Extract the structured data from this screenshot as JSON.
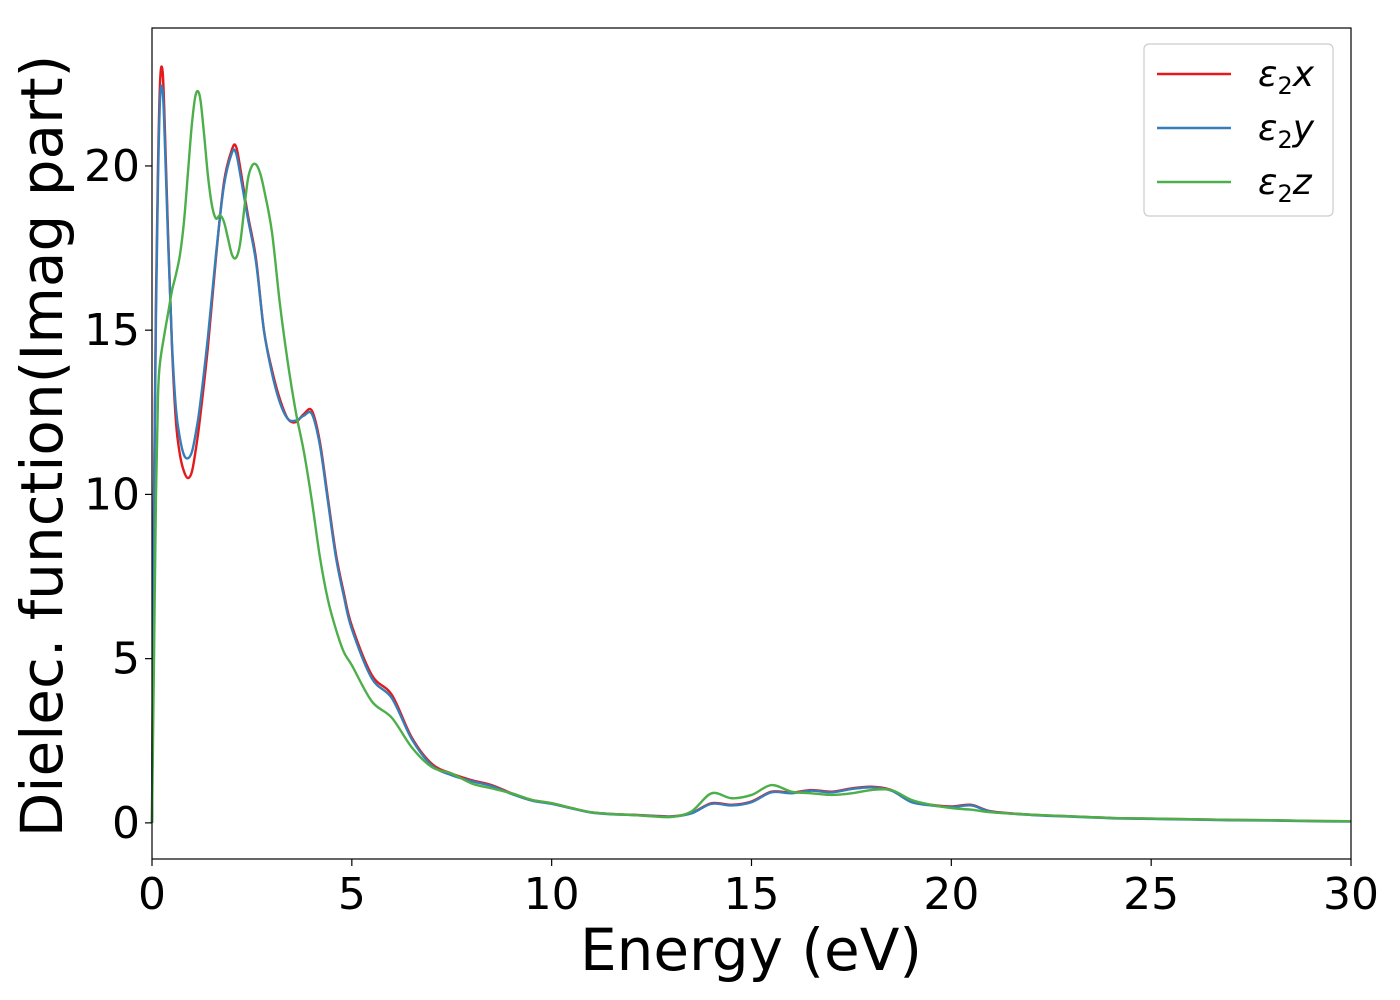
{
  "chart_data": {
    "type": "line",
    "title": "",
    "xlabel": "Energy (eV)",
    "ylabel": "Dielec. function(Imag part)",
    "xlim": [
      0,
      30
    ],
    "ylim": [
      -1.1,
      24.2
    ],
    "xticks": [
      "0",
      "5",
      "10",
      "15",
      "20",
      "25",
      "30"
    ],
    "yticks": [
      "0",
      "5",
      "10",
      "15",
      "20"
    ],
    "xtick_values": [
      0,
      5,
      10,
      15,
      20,
      25,
      30
    ],
    "ytick_values": [
      0,
      5,
      10,
      15,
      20
    ],
    "grid": false,
    "legend_position": "top-right",
    "series": [
      {
        "name": "ε₂x",
        "legend_base": "ε",
        "legend_sub": "2",
        "legend_var": "x",
        "color": "#e41a1c",
        "x": [
          0,
          0.05,
          0.1,
          0.15,
          0.2,
          0.25,
          0.3,
          0.4,
          0.5,
          0.6,
          0.7,
          0.8,
          0.9,
          1.0,
          1.1,
          1.2,
          1.4,
          1.6,
          1.8,
          2.0,
          2.1,
          2.2,
          2.4,
          2.6,
          2.8,
          3.0,
          3.2,
          3.4,
          3.6,
          3.8,
          4.0,
          4.2,
          4.4,
          4.6,
          4.8,
          5.0,
          5.5,
          6.0,
          6.5,
          7.0,
          7.5,
          8.0,
          8.5,
          9.0,
          9.5,
          10.0,
          10.5,
          11.0,
          11.5,
          12.0,
          12.5,
          13.0,
          13.5,
          14.0,
          14.5,
          15.0,
          15.5,
          16.0,
          16.5,
          17.0,
          17.5,
          18.0,
          18.5,
          19.0,
          19.5,
          20.0,
          20.5,
          21.0,
          22.0,
          23.0,
          24.0,
          25.0,
          26.0,
          27.0,
          28.0,
          29.0,
          30.0
        ],
        "y": [
          0.0,
          10.0,
          16.0,
          20.0,
          22.5,
          23.0,
          22.0,
          18.0,
          14.5,
          12.2,
          11.2,
          10.7,
          10.5,
          10.7,
          11.4,
          12.3,
          14.5,
          17.2,
          19.5,
          20.5,
          20.6,
          20.0,
          18.5,
          17.2,
          15.0,
          13.8,
          12.9,
          12.3,
          12.2,
          12.45,
          12.55,
          11.6,
          9.9,
          8.2,
          7.0,
          6.0,
          4.5,
          3.9,
          2.6,
          1.8,
          1.5,
          1.3,
          1.15,
          0.9,
          0.7,
          0.6,
          0.45,
          0.32,
          0.27,
          0.25,
          0.22,
          0.2,
          0.3,
          0.6,
          0.55,
          0.65,
          0.95,
          0.92,
          1.0,
          0.95,
          1.05,
          1.1,
          1.0,
          0.65,
          0.55,
          0.5,
          0.55,
          0.35,
          0.25,
          0.2,
          0.15,
          0.13,
          0.11,
          0.09,
          0.08,
          0.06,
          0.05
        ]
      },
      {
        "name": "ε₂y",
        "legend_base": "ε",
        "legend_sub": "2",
        "legend_var": "y",
        "color": "#377eb8",
        "x": [
          0,
          0.05,
          0.1,
          0.15,
          0.2,
          0.25,
          0.3,
          0.4,
          0.5,
          0.6,
          0.7,
          0.8,
          0.9,
          1.0,
          1.1,
          1.2,
          1.4,
          1.6,
          1.8,
          2.0,
          2.1,
          2.2,
          2.4,
          2.6,
          2.8,
          3.0,
          3.2,
          3.4,
          3.6,
          3.8,
          4.0,
          4.2,
          4.4,
          4.6,
          4.8,
          5.0,
          5.5,
          6.0,
          6.5,
          7.0,
          7.5,
          8.0,
          8.5,
          9.0,
          9.5,
          10.0,
          10.5,
          11.0,
          11.5,
          12.0,
          12.5,
          13.0,
          13.5,
          14.0,
          14.5,
          15.0,
          15.5,
          16.0,
          16.5,
          17.0,
          17.5,
          18.0,
          18.5,
          19.0,
          19.5,
          20.0,
          20.5,
          21.0,
          22.0,
          23.0,
          24.0,
          25.0,
          26.0,
          27.0,
          28.0,
          29.0,
          30.0
        ],
        "y": [
          0.0,
          9.5,
          15.5,
          19.5,
          22.0,
          22.4,
          21.5,
          17.8,
          14.6,
          12.6,
          11.7,
          11.2,
          11.1,
          11.3,
          11.9,
          12.7,
          14.8,
          17.3,
          19.4,
          20.4,
          20.4,
          19.8,
          18.4,
          17.1,
          15.0,
          13.7,
          12.8,
          12.3,
          12.25,
          12.4,
          12.45,
          11.5,
          9.8,
          8.1,
          6.9,
          5.9,
          4.4,
          3.8,
          2.55,
          1.75,
          1.45,
          1.27,
          1.12,
          0.88,
          0.68,
          0.58,
          0.44,
          0.31,
          0.26,
          0.24,
          0.21,
          0.19,
          0.29,
          0.58,
          0.53,
          0.63,
          0.93,
          0.9,
          0.98,
          0.93,
          1.03,
          1.08,
          0.98,
          0.63,
          0.53,
          0.48,
          0.53,
          0.34,
          0.24,
          0.19,
          0.14,
          0.12,
          0.1,
          0.08,
          0.07,
          0.05,
          0.04
        ]
      },
      {
        "name": "ε₂z",
        "legend_base": "ε",
        "legend_sub": "2",
        "legend_var": "z",
        "color": "#4daf4a",
        "x": [
          0,
          0.05,
          0.1,
          0.15,
          0.2,
          0.3,
          0.4,
          0.5,
          0.6,
          0.7,
          0.8,
          0.9,
          1.0,
          1.1,
          1.2,
          1.3,
          1.4,
          1.5,
          1.6,
          1.7,
          1.8,
          1.9,
          2.0,
          2.1,
          2.2,
          2.3,
          2.4,
          2.5,
          2.6,
          2.7,
          2.8,
          3.0,
          3.2,
          3.4,
          3.6,
          3.8,
          4.0,
          4.2,
          4.4,
          4.6,
          4.8,
          5.0,
          5.5,
          6.0,
          6.5,
          7.0,
          7.5,
          8.0,
          8.5,
          9.0,
          9.5,
          10.0,
          10.5,
          11.0,
          11.5,
          12.0,
          12.5,
          13.0,
          13.5,
          14.0,
          14.5,
          15.0,
          15.5,
          16.0,
          16.5,
          17.0,
          17.5,
          18.0,
          18.5,
          19.0,
          19.5,
          20.0,
          20.5,
          21.0,
          22.0,
          23.0,
          24.0,
          25.0,
          26.0,
          27.0,
          28.0,
          29.0,
          30.0
        ],
        "y": [
          0.0,
          5.0,
          10.0,
          13.0,
          14.0,
          14.8,
          15.5,
          16.2,
          16.7,
          17.3,
          18.3,
          19.8,
          21.3,
          22.2,
          22.1,
          21.0,
          19.7,
          18.8,
          18.4,
          18.5,
          18.3,
          17.8,
          17.3,
          17.2,
          17.6,
          18.6,
          19.6,
          20.0,
          20.05,
          19.8,
          19.3,
          18.0,
          15.8,
          14.0,
          12.5,
          11.3,
          9.8,
          8.1,
          6.8,
          5.9,
          5.2,
          4.8,
          3.7,
          3.2,
          2.3,
          1.7,
          1.5,
          1.2,
          1.05,
          0.9,
          0.7,
          0.6,
          0.45,
          0.32,
          0.27,
          0.24,
          0.2,
          0.18,
          0.35,
          0.9,
          0.75,
          0.85,
          1.15,
          0.95,
          0.9,
          0.85,
          0.9,
          1.0,
          1.0,
          0.7,
          0.55,
          0.45,
          0.4,
          0.32,
          0.25,
          0.2,
          0.15,
          0.13,
          0.11,
          0.09,
          0.08,
          0.06,
          0.05
        ]
      }
    ]
  }
}
